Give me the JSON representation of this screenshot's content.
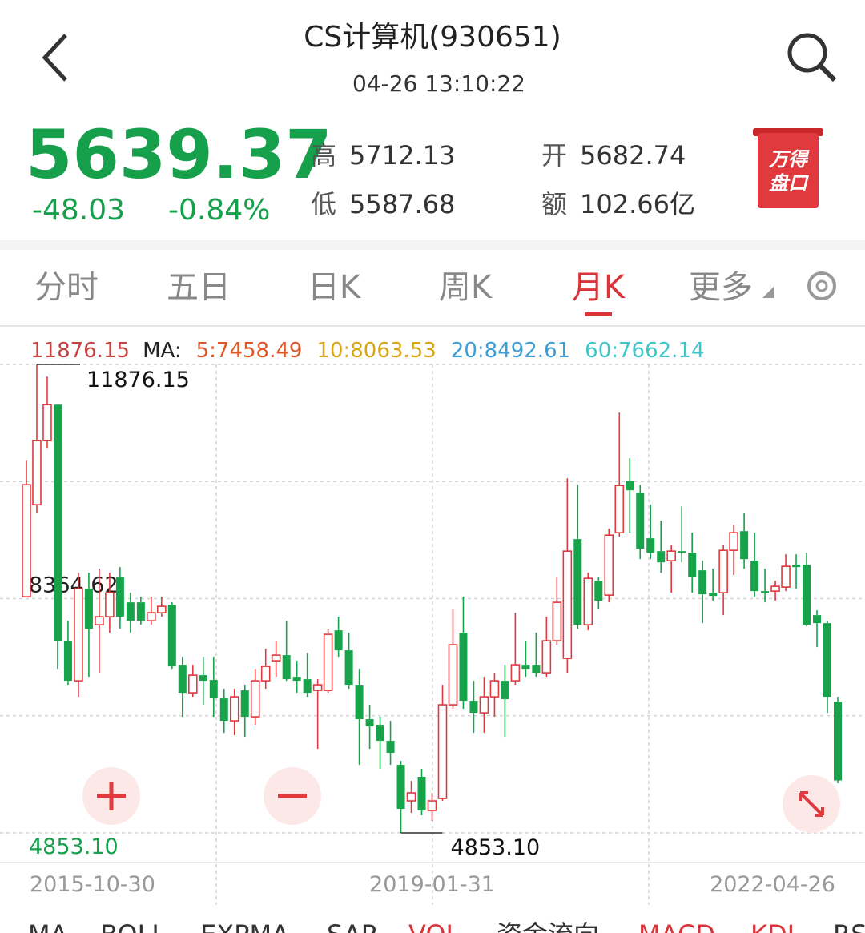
{
  "header": {
    "title": "CS计算机(930651)",
    "time": "04-26 13:10:22"
  },
  "quote": {
    "price": "5639.37",
    "change": "-48.03",
    "change_pct": "-0.84%",
    "high_label": "高",
    "high": "5712.13",
    "low_label": "低",
    "low": "5587.68",
    "open_label": "开",
    "open": "5682.74",
    "amount_label": "额",
    "amount": "102.66亿",
    "badge": [
      "万得",
      "盘口"
    ]
  },
  "tabs": [
    "分时",
    "五日",
    "日K",
    "周K",
    "月K",
    "更多"
  ],
  "active_tab": 4,
  "chart_data": {
    "type": "candlestick",
    "legend": {
      "max": "11876.15",
      "ma_label": "MA:",
      "ma": [
        {
          "label": "5:7458.49",
          "color": "#e0572a"
        },
        {
          "label": "10:8063.53",
          "color": "#d9a514"
        },
        {
          "label": "20:8492.61",
          "color": "#3a9fd6"
        },
        {
          "label": "60:7662.14",
          "color": "#3cc6c8"
        }
      ]
    },
    "categories": [
      "2015-10-30",
      null,
      null,
      null,
      null,
      null,
      null,
      null,
      null,
      null,
      null,
      null,
      null,
      null,
      null,
      null,
      null,
      null,
      null,
      null,
      null,
      null,
      null,
      null,
      null,
      null,
      null,
      null,
      null,
      null,
      null,
      null,
      null,
      null,
      null,
      null,
      null,
      null,
      null,
      "2019-01-31",
      null,
      null,
      null,
      null,
      null,
      null,
      null,
      null,
      null,
      null,
      null,
      null,
      null,
      null,
      null,
      null,
      null,
      null,
      null,
      null,
      null,
      null,
      null,
      null,
      null,
      null,
      null,
      null,
      null,
      null,
      null,
      null,
      null,
      null,
      null,
      null,
      null,
      null,
      "2022-04-26"
    ],
    "open": [
      8393,
      9773,
      10733,
      11273,
      7733,
      7133,
      8513,
      7973,
      8093,
      8693,
      8309,
      8309,
      8033,
      8153,
      8273,
      7373,
      6953,
      7217,
      7145,
      6869,
      6533,
      6989,
      6593,
      7133,
      7433,
      7517,
      7193,
      7157,
      6989,
      6989,
      7889,
      7589,
      7073,
      6557,
      6473,
      6233,
      5873,
      5333,
      5693,
      5189,
      5369,
      6773,
      7853,
      6833,
      6653,
      6893,
      7133,
      7133,
      7373,
      7373,
      7253,
      7733,
      7469,
      9257,
      7973,
      8633,
      8417,
      9353,
      10133,
      9953,
      9269,
      9077,
      8933,
      9077,
      9053,
      8789,
      8453,
      8453,
      9089,
      9377,
      8933,
      8477,
      8477,
      8537,
      8873,
      8873,
      8117,
      7997,
      6821
    ],
    "high": [
      10433,
      11876.15,
      11693,
      11273,
      8033,
      8753,
      8753,
      8813,
      8753,
      8837,
      8453,
      8393,
      8393,
      8393,
      8309,
      7493,
      7373,
      7493,
      7493,
      7013,
      7013,
      7073,
      7313,
      7613,
      7733,
      8033,
      7433,
      7553,
      7157,
      7913,
      8093,
      7853,
      7313,
      6773,
      6593,
      6533,
      5933,
      5633,
      5813,
      5453,
      7073,
      8213,
      8393,
      7133,
      7193,
      7253,
      7373,
      8153,
      7733,
      7853,
      8093,
      8693,
      10169,
      10073,
      8753,
      8693,
      9413,
      11153,
      10469,
      10073,
      9773,
      9533,
      9173,
      9749,
      9353,
      8933,
      8813,
      9173,
      9473,
      9653,
      9353,
      8813,
      8633,
      9029,
      9029,
      9053,
      8189,
      8033,
      6893
    ],
    "low": [
      8393,
      9653,
      10613,
      7313,
      7073,
      6893,
      7193,
      7253,
      7853,
      7913,
      7853,
      7973,
      7973,
      8093,
      7313,
      6593,
      6893,
      6773,
      6593,
      6353,
      6317,
      6293,
      6473,
      7013,
      7193,
      7133,
      6953,
      6893,
      6113,
      6953,
      7493,
      7013,
      5873,
      6113,
      5813,
      5873,
      4853.1,
      5153,
      5117,
      5033,
      5333,
      6713,
      6713,
      6353,
      6353,
      6593,
      6293,
      7073,
      7193,
      7193,
      7193,
      7673,
      7253,
      7913,
      7889,
      8213,
      8309,
      9293,
      9353,
      8957,
      8957,
      8753,
      8453,
      8909,
      8453,
      7997,
      8333,
      8117,
      8717,
      8813,
      8393,
      8309,
      8333,
      8477,
      8513,
      7949,
      7637,
      6653,
      5597
    ],
    "close": [
      10073,
      10733,
      11273,
      7733,
      7133,
      8513,
      7913,
      8093,
      8453,
      8093,
      8033,
      8033,
      8153,
      8249,
      7349,
      6953,
      7217,
      7133,
      6869,
      6533,
      6893,
      6593,
      7133,
      7349,
      7517,
      7157,
      7133,
      6953,
      7073,
      7829,
      7589,
      7073,
      6557,
      6449,
      6233,
      6053,
      5213,
      5453,
      5189,
      5333,
      6773,
      7673,
      6833,
      6653,
      6893,
      7133,
      6857,
      7373,
      7313,
      7253,
      7733,
      8309,
      9077,
      7973,
      8669,
      8333,
      9317,
      10061,
      9989,
      9113,
      9053,
      8909,
      9077,
      9053,
      8693,
      8429,
      8405,
      9089,
      9353,
      8957,
      8477,
      8453,
      8549,
      8849,
      8837,
      7973,
      7997,
      6893,
      5639.37
    ],
    "up_color": "#e0393e",
    "down_color": "#16a34a",
    "ylim": [
      4853.1,
      11876.15
    ],
    "yticks": [
      {
        "value": 4853.1,
        "label": "4853.10"
      },
      8364.62,
      11876.15
    ],
    "annotations": {
      "max": "11876.15",
      "min": "4853.10"
    },
    "grid": true
  },
  "indicators": [
    {
      "name": "MA",
      "color": "#333333"
    },
    {
      "name": "BOLL",
      "color": "#333333"
    },
    {
      "name": "EXPMA",
      "color": "#333333"
    },
    {
      "name": "SAR",
      "color": "#333333"
    },
    {
      "name": "VOL",
      "color": "#d9343a"
    },
    {
      "name": "资金流向",
      "color": "#333333"
    },
    {
      "name": "MACD",
      "color": "#d9343a"
    },
    {
      "name": "KDJ",
      "color": "#d9343a"
    },
    {
      "name": "RSI",
      "color": "#333333"
    }
  ]
}
